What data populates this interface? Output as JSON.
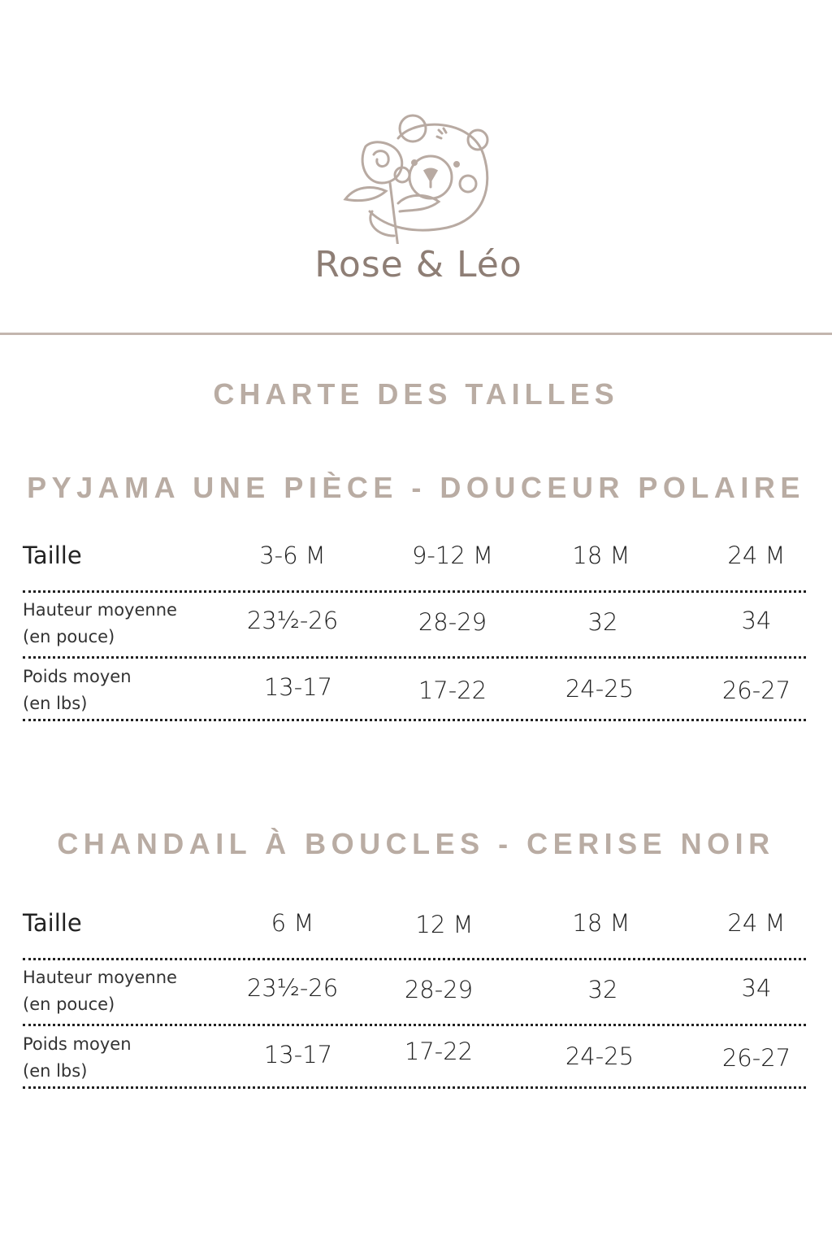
{
  "brand": {
    "logo_text": "Rose & Léo",
    "color": "#8e7e75"
  },
  "title": "CHARTE DES TAILLES",
  "accent_color": "#b9aca3",
  "sections": [
    {
      "title": "PYJAMA UNE PIÈCE - DOUCEUR POLAIRE",
      "header": {
        "label": "Taille",
        "sizes": [
          "3-6 M",
          "9-12 M",
          "18 M",
          "24 M"
        ]
      },
      "rows": [
        {
          "label": "Hauteur moyenne",
          "unit": "(en pouce)",
          "values": [
            "23½-26",
            "28-29",
            "32",
            "34"
          ]
        },
        {
          "label": "Poids moyen",
          "unit": "(en lbs)",
          "values": [
            "13-17",
            "17-22",
            "24-25",
            "26-27"
          ]
        }
      ]
    },
    {
      "title": "CHANDAIL À BOUCLES - CERISE NOIR",
      "header": {
        "label": "Taille",
        "sizes": [
          "6 M",
          "12 M",
          "18 M",
          "24 M"
        ]
      },
      "rows": [
        {
          "label": "Hauteur moyenne",
          "unit": "(en pouce)",
          "values": [
            "23½-26",
            "28-29",
            "32",
            "34"
          ]
        },
        {
          "label": "Poids moyen",
          "unit": "(en lbs)",
          "values": [
            "13-17",
            "17-22",
            "24-25",
            "26-27"
          ]
        }
      ]
    }
  ]
}
